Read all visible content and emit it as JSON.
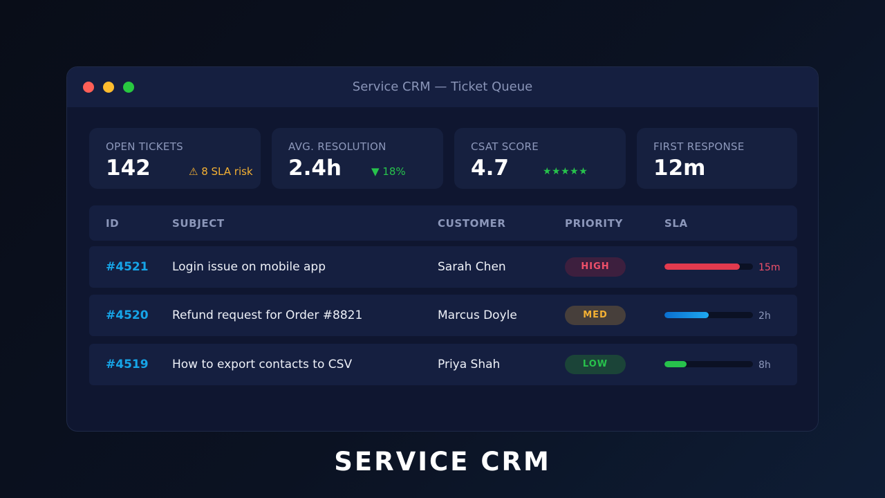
{
  "window": {
    "title": "Service CRM — Ticket Queue",
    "controls": [
      "close",
      "minimize",
      "maximize"
    ]
  },
  "kpis": [
    {
      "label": "OPEN TICKETS",
      "value": "142",
      "note": "⚠ 8 SLA risk",
      "note_color": "#f5b133"
    },
    {
      "label": "AVG. RESOLUTION",
      "value": "2.4h",
      "note": "▼ 18%",
      "note_color": "#27c24c"
    },
    {
      "label": "CSAT SCORE",
      "value": "4.7",
      "note": "★★★★★",
      "note_color": "#27c24c"
    },
    {
      "label": "FIRST RESPONSE",
      "value": "12m"
    }
  ],
  "table": {
    "columns": [
      "ID",
      "SUBJECT",
      "CUSTOMER",
      "PRIORITY",
      "SLA"
    ],
    "rows": [
      {
        "id": "#4521",
        "subject": "Login issue on mobile app",
        "customer": "Sarah Chen",
        "priority": "HIGH",
        "sla_fraction": 0.85,
        "sla_time": "15m"
      },
      {
        "id": "#4520",
        "subject": "Refund request for Order #8821",
        "customer": "Marcus Doyle",
        "priority": "MED",
        "sla_fraction": 0.5,
        "sla_time": "2h"
      },
      {
        "id": "#4519",
        "subject": "How to export contacts to CSV",
        "customer": "Priya Shah",
        "priority": "LOW",
        "sla_fraction": 0.25,
        "sla_time": "8h"
      }
    ]
  },
  "colors": {
    "accent_id": "#16a5e8",
    "high": "#f0506a",
    "med": "#f5b133",
    "low": "#27c24c"
  },
  "caption": "SERVICE CRM"
}
